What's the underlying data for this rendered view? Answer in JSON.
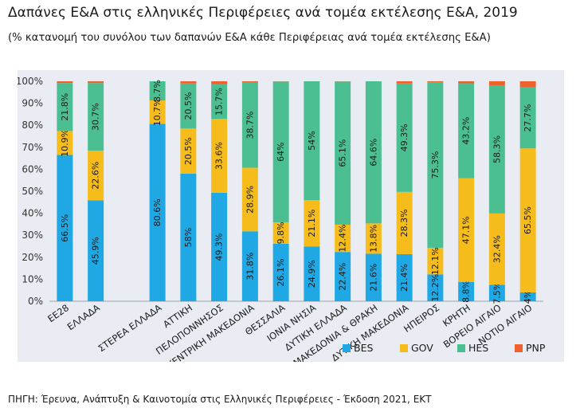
{
  "title": "Δαπάνες Ε&Α στις ελληνικές Περιφέρειες ανά τομέα εκτέλεσης Ε&Α, 2019",
  "subtitle": "(% κατανομή του συνόλου των δαπανών Ε&Α κάθε Περιφέρειας ανά τομέα εκτέλεσης Ε&Α)",
  "source": "ΠΗΓΗ: Έρευνα, Ανάπτυξη & Καινοτομία στις Ελληνικές Περιφέρειες - Έκδοση 2021, ΕΚΤ",
  "colors": {
    "BES": "#1fa8e4",
    "GOV": "#f5bc1c",
    "HES": "#4cbf92",
    "PNP": "#ef6230"
  },
  "chart_data": {
    "type": "bar",
    "stacked": true,
    "orientation": "vertical",
    "ylim": [
      0,
      100
    ],
    "y_ticks": [
      "0%",
      "10%",
      "20%",
      "30%",
      "40%",
      "50%",
      "60%",
      "70%",
      "80%",
      "90%",
      "100%"
    ],
    "grid": false,
    "legend_position": "bottom-right",
    "categories": [
      "ΕΕ28",
      "ΕΛΛΑΔΑ",
      "",
      "ΣΤΕΡΕΑ ΕΛΛΑΔΑ",
      "ΑΤΤΙΚΗ",
      "ΠΕΛΟΠΟΝΝΗΣΟΣ",
      "ΚΕΝΤΡΙΚΗ ΜΑΚΕΔΟΝΙΑ",
      "ΘΕΣΣΑΛΙΑ",
      "ΙΟΝΙΑ ΝΗΣΙΑ",
      "ΔΥΤΙΚΗ ΕΛΛΑΔΑ",
      "ΑΝΑΤΟΛΙΚΗ ΜΑΚΕΔΟΝΙΑ & ΘΡΑΚΗ",
      "ΔΥΤΙΚΗ ΜΑΚΕΔΟΝΙΑ",
      "ΗΠΕΙΡΟΣ",
      "ΚΡΗΤΗ",
      "ΒΟΡΕΙΟ ΑΙΓΑΙΟ",
      "ΝΟΤΙΟ ΑΙΓΑΙΟ"
    ],
    "series": [
      {
        "name": "BES",
        "values": [
          66.5,
          45.9,
          null,
          80.6,
          58,
          49.3,
          31.8,
          26.1,
          24.9,
          22.4,
          21.6,
          21.4,
          12.2,
          8.8,
          7.5,
          4
        ],
        "labels": [
          "66.5%",
          "45.9%",
          "",
          "80.6%",
          "58%",
          "49.3%",
          "31.8%",
          "26.1%",
          "24.9%",
          "22.4%",
          "21.6%",
          "21.4%",
          "12.2%",
          "8.8%",
          "7.5%",
          "4%"
        ]
      },
      {
        "name": "GOV",
        "values": [
          10.9,
          22.6,
          null,
          10.7,
          20.5,
          33.6,
          28.9,
          9.8,
          21.1,
          12.4,
          13.8,
          28.3,
          12.1,
          47.1,
          32.4,
          65.5
        ],
        "labels": [
          "10.9%",
          "22.6%",
          "",
          "10.7%",
          "20.5%",
          "33.6%",
          "28.9%",
          "9.8%",
          "21.1%",
          "12.4%",
          "13.8%",
          "28.3%",
          "12.1%",
          "47.1%",
          "32.4%",
          "65.5%"
        ]
      },
      {
        "name": "HES",
        "values": [
          21.8,
          30.7,
          null,
          8.7,
          20.5,
          15.7,
          38.7,
          64,
          54,
          65.1,
          64.6,
          49.3,
          75.3,
          43.2,
          58.3,
          27.7
        ],
        "labels": [
          "21.8%",
          "30.7%",
          "",
          "8.7%",
          "20.5%",
          "15.7%",
          "38.7%",
          "64%",
          "54%",
          "65.1%",
          "64.6%",
          "49.3%",
          "75.3%",
          "43.2%",
          "58.3%",
          "27.7%"
        ]
      },
      {
        "name": "PNP",
        "values": [
          0.8,
          0.8,
          null,
          0,
          1,
          1.4,
          0.6,
          0.1,
          0,
          0.1,
          0,
          1,
          0.4,
          0.9,
          1.8,
          2.8
        ],
        "labels": [
          "",
          "",
          "",
          "",
          "",
          "",
          "",
          "",
          "",
          "",
          "",
          "",
          "",
          "",
          "",
          ""
        ]
      }
    ]
  }
}
